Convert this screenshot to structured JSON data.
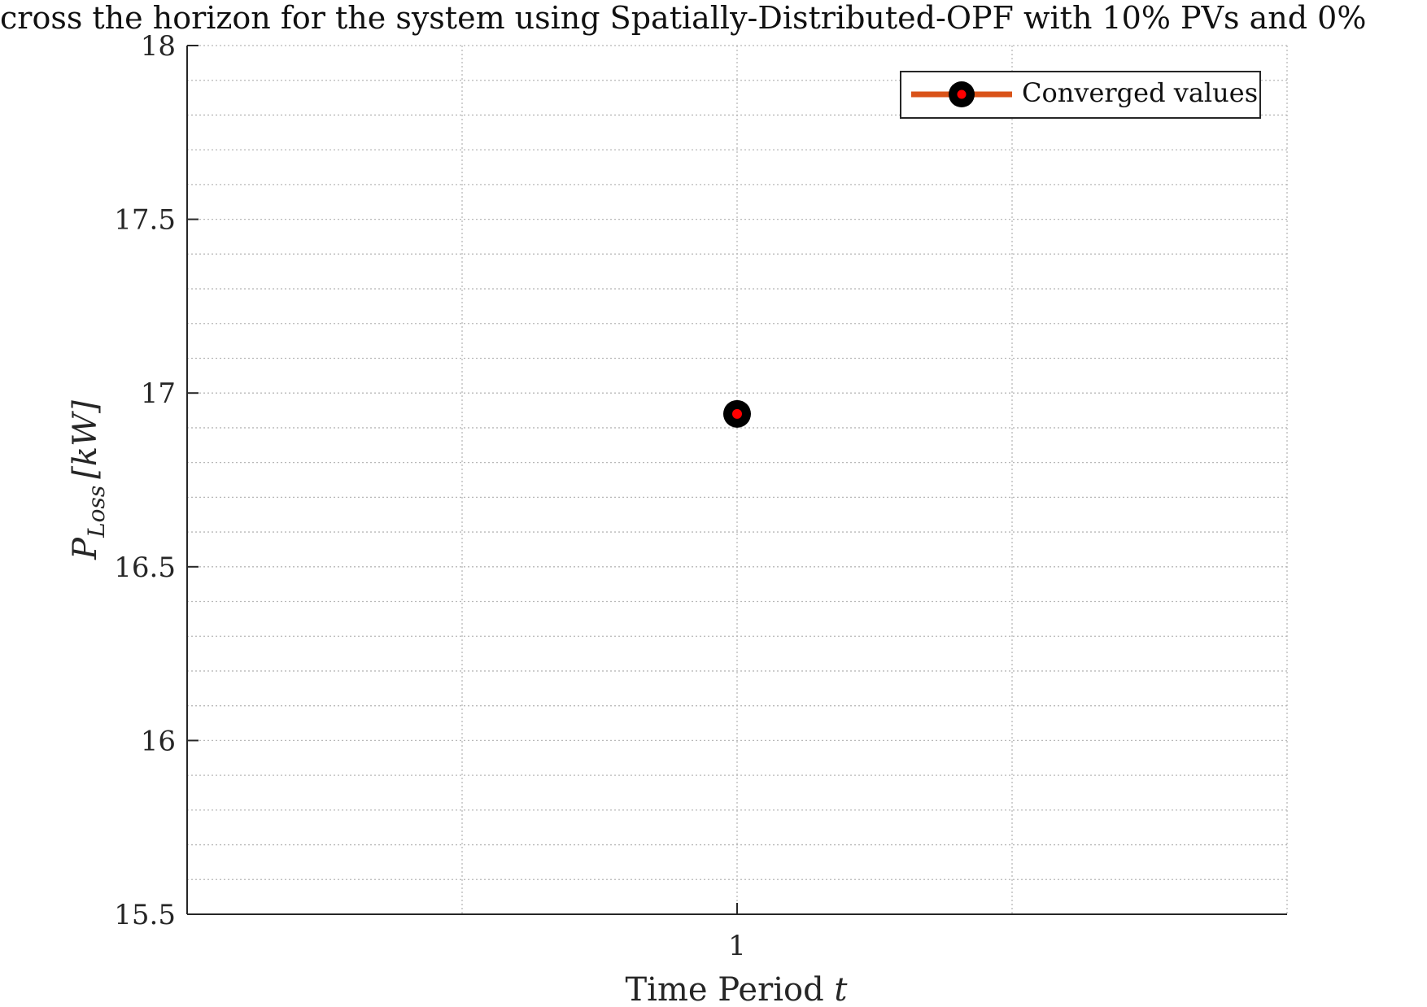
{
  "chart_data": {
    "type": "line",
    "title": "cross the horizon for the system using Spatially-Distributed-OPF with 10% PVs and 0%",
    "xlabel": "Time Period",
    "xlabel_var": "t",
    "ylabel_main": "P",
    "ylabel_sub": "Loss",
    "ylabel_unit": "[kW]",
    "xlim": [
      0.5,
      1.5
    ],
    "ylim": [
      15.5,
      18
    ],
    "x_ticks": [
      1
    ],
    "x_tick_labels": [
      "1"
    ],
    "y_ticks": [
      15.5,
      16,
      16.5,
      17,
      17.5,
      18
    ],
    "y_tick_labels": [
      "15.5",
      "16",
      "16.5",
      "17",
      "17.5",
      "18"
    ],
    "x_grid_minor": [
      0.75,
      1.25
    ],
    "y_grid_minor_step": 0.1,
    "grid": true,
    "legend_position": "top-right",
    "series": [
      {
        "name": "Converged values",
        "x": [
          1
        ],
        "y": [
          16.94
        ],
        "line_color": "#D95319",
        "marker_edge_color": "#000000",
        "marker_face_color": "#FF0000"
      }
    ]
  }
}
